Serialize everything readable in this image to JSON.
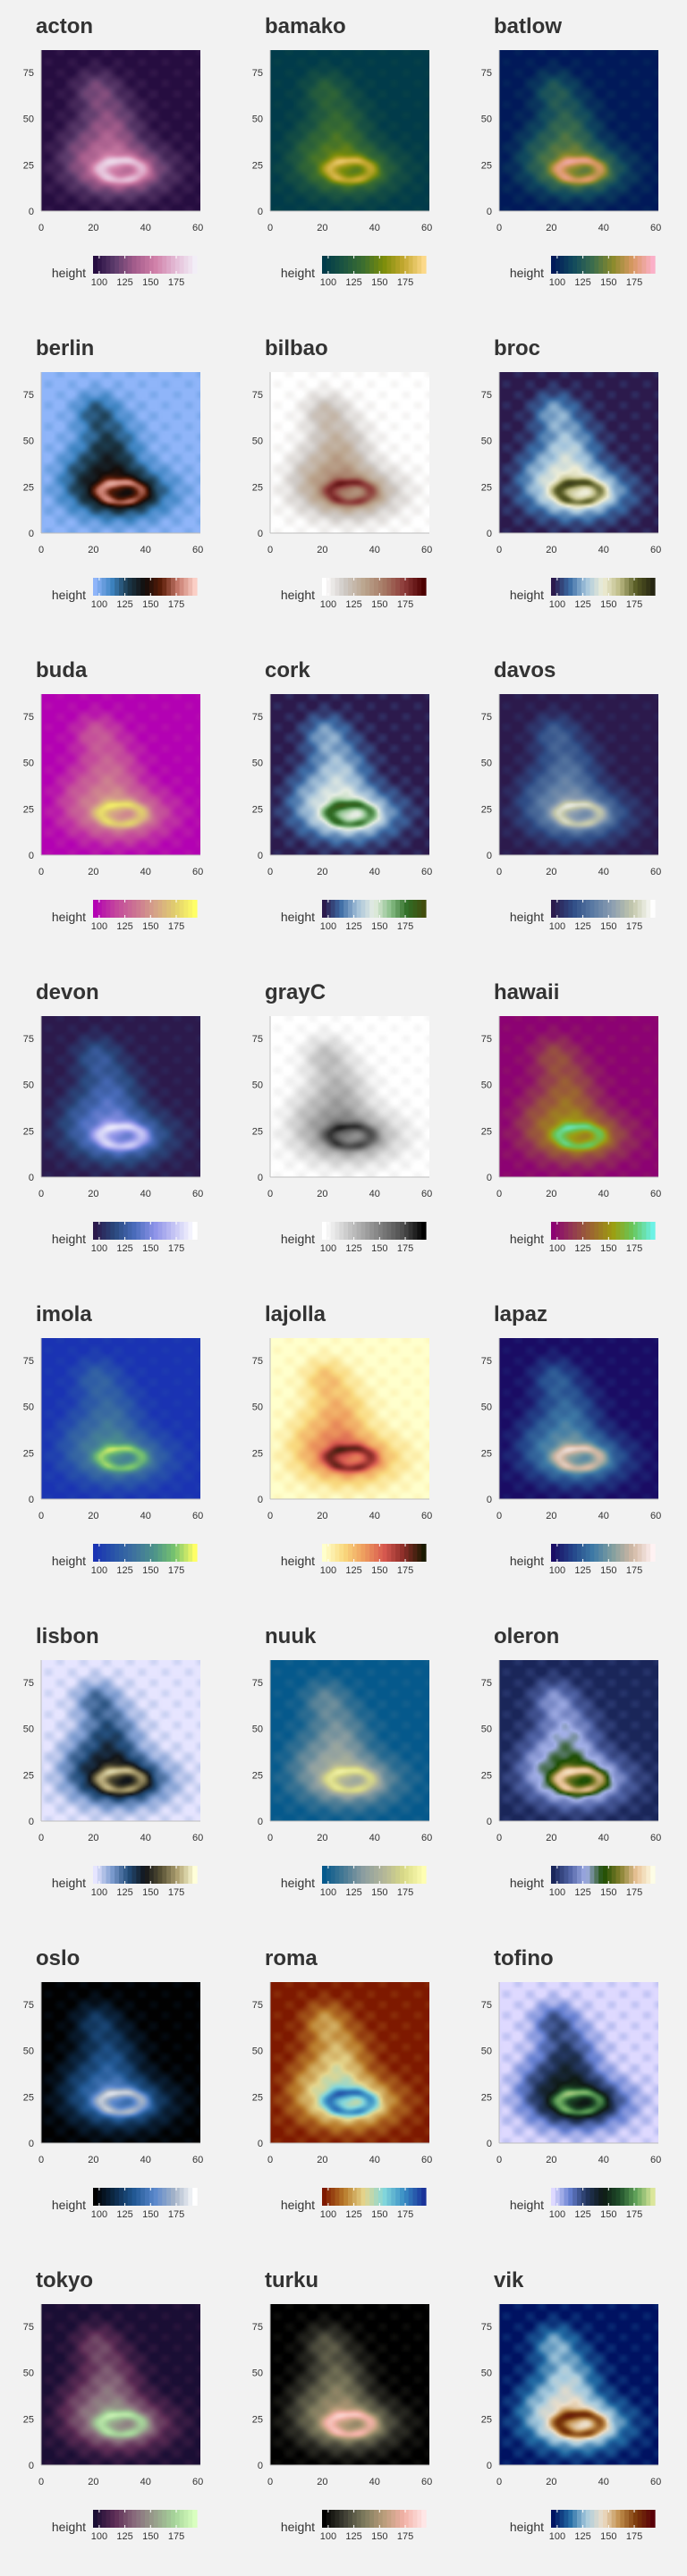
{
  "page": {
    "background": "#f2f2f2"
  },
  "chart_data": [
    {
      "type": "heatmap",
      "title": "acton",
      "colormap": [
        "#260d40",
        "#5e3d6d",
        "#a55d8c",
        "#d07fa8",
        "#e3b9d4",
        "#f2eef7"
      ],
      "xlabel": "",
      "ylabel": "",
      "xlim": [
        0,
        61
      ],
      "ylim": [
        0,
        87
      ],
      "x_ticks": [
        0,
        20,
        40,
        60
      ],
      "y_ticks": [
        0,
        25,
        50,
        75
      ],
      "legend": {
        "title": "height",
        "ticks": [
          100,
          125,
          150,
          175
        ],
        "range": [
          94,
          195
        ]
      }
    },
    {
      "type": "heatmap",
      "title": "bamako",
      "colormap": [
        "#013b4a",
        "#1d5541",
        "#3d6f2e",
        "#7c8d0a",
        "#c4a830",
        "#fcd98a"
      ],
      "xlabel": "",
      "ylabel": "",
      "xlim": [
        0,
        61
      ],
      "ylim": [
        0,
        87
      ],
      "x_ticks": [
        0,
        20,
        40,
        60
      ],
      "y_ticks": [
        0,
        25,
        50,
        75
      ],
      "legend": {
        "title": "height",
        "ticks": [
          100,
          125,
          150,
          175
        ],
        "range": [
          94,
          195
        ]
      }
    },
    {
      "type": "heatmap",
      "title": "batlow",
      "colormap": [
        "#011959",
        "#114a5e",
        "#3d6e4c",
        "#8a8a2b",
        "#d99863",
        "#fbb0c8"
      ],
      "xlabel": "",
      "ylabel": "",
      "xlim": [
        0,
        61
      ],
      "ylim": [
        0,
        87
      ],
      "x_ticks": [
        0,
        20,
        40,
        60
      ],
      "y_ticks": [
        0,
        25,
        50,
        75
      ],
      "legend": {
        "title": "height",
        "ticks": [
          100,
          125,
          150,
          175
        ],
        "range": [
          94,
          195
        ]
      }
    },
    {
      "type": "heatmap",
      "title": "berlin",
      "colormap": [
        "#8fb5f9",
        "#3e84c2",
        "#1b3849",
        "#120c0a",
        "#5d1d08",
        "#c77a6c",
        "#fbcfc6"
      ],
      "xlabel": "",
      "ylabel": "",
      "xlim": [
        0,
        61
      ],
      "ylim": [
        0,
        87
      ],
      "x_ticks": [
        0,
        20,
        40,
        60
      ],
      "y_ticks": [
        0,
        25,
        50,
        75
      ],
      "legend": {
        "title": "height",
        "ticks": [
          100,
          125,
          150,
          175
        ],
        "range": [
          94,
          195
        ]
      }
    },
    {
      "type": "heatmap",
      "title": "bilbao",
      "colormap": [
        "#ffffff",
        "#cfcac6",
        "#bba58e",
        "#a67a65",
        "#8e3c3a",
        "#4d0001"
      ],
      "xlabel": "",
      "ylabel": "",
      "xlim": [
        0,
        61
      ],
      "ylim": [
        0,
        87
      ],
      "x_ticks": [
        0,
        20,
        40,
        60
      ],
      "y_ticks": [
        0,
        25,
        50,
        75
      ],
      "legend": {
        "title": "height",
        "ticks": [
          100,
          125,
          150,
          175
        ],
        "range": [
          94,
          195
        ]
      }
    },
    {
      "type": "heatmap",
      "title": "broc",
      "colormap": [
        "#2c1a4c",
        "#3a6ca5",
        "#a6c6dd",
        "#efeed7",
        "#bebc86",
        "#575b24",
        "#262612"
      ],
      "xlabel": "",
      "ylabel": "",
      "xlim": [
        0,
        61
      ],
      "ylim": [
        0,
        87
      ],
      "x_ticks": [
        0,
        20,
        40,
        60
      ],
      "y_ticks": [
        0,
        25,
        50,
        75
      ],
      "legend": {
        "title": "height",
        "ticks": [
          100,
          125,
          150,
          175
        ],
        "range": [
          94,
          195
        ]
      }
    },
    {
      "type": "heatmap",
      "title": "buda",
      "colormap": [
        "#b301b3",
        "#c3459d",
        "#cb7393",
        "#d5a288",
        "#e0cd6e",
        "#ffff66"
      ],
      "xlabel": "",
      "ylabel": "",
      "xlim": [
        0,
        61
      ],
      "ylim": [
        0,
        87
      ],
      "x_ticks": [
        0,
        20,
        40,
        60
      ],
      "y_ticks": [
        0,
        25,
        50,
        75
      ],
      "legend": {
        "title": "height",
        "ticks": [
          100,
          125,
          150,
          175
        ],
        "range": [
          94,
          195
        ]
      }
    },
    {
      "type": "heatmap",
      "title": "cork",
      "colormap": [
        "#2c1a4c",
        "#3e6ca5",
        "#a3c0d8",
        "#e7eee4",
        "#8abf89",
        "#2f6d26",
        "#424d0d"
      ],
      "xlabel": "",
      "ylabel": "",
      "xlim": [
        0,
        61
      ],
      "ylim": [
        0,
        87
      ],
      "x_ticks": [
        0,
        20,
        40,
        60
      ],
      "y_ticks": [
        0,
        25,
        50,
        75
      ],
      "legend": {
        "title": "height",
        "ticks": [
          100,
          125,
          150,
          175
        ],
        "range": [
          94,
          195
        ]
      }
    },
    {
      "type": "heatmap",
      "title": "davos",
      "colormap": [
        "#2c1a4c",
        "#2f4d86",
        "#5b7ba4",
        "#8e9fb1",
        "#c4c8ab",
        "#fefefe"
      ],
      "xlabel": "",
      "ylabel": "",
      "xlim": [
        0,
        61
      ],
      "ylim": [
        0,
        87
      ],
      "x_ticks": [
        0,
        20,
        40,
        60
      ],
      "y_ticks": [
        0,
        25,
        50,
        75
      ],
      "legend": {
        "title": "height",
        "ticks": [
          100,
          125,
          150,
          175
        ],
        "range": [
          94,
          195
        ]
      }
    },
    {
      "type": "heatmap",
      "title": "devon",
      "colormap": [
        "#2c1a4c",
        "#2a4a7f",
        "#4a6dbd",
        "#8e93e8",
        "#c7c6f5",
        "#ffffff"
      ],
      "xlabel": "",
      "ylabel": "",
      "xlim": [
        0,
        61
      ],
      "ylim": [
        0,
        87
      ],
      "x_ticks": [
        0,
        20,
        40,
        60
      ],
      "y_ticks": [
        0,
        25,
        50,
        75
      ],
      "legend": {
        "title": "height",
        "ticks": [
          100,
          125,
          150,
          175
        ],
        "range": [
          94,
          195
        ]
      }
    },
    {
      "type": "heatmap",
      "title": "grayC",
      "colormap": [
        "#ffffff",
        "#d1d1d1",
        "#a4a4a4",
        "#777777",
        "#4b4b4b",
        "#000000"
      ],
      "xlabel": "",
      "ylabel": "",
      "xlim": [
        0,
        61
      ],
      "ylim": [
        0,
        87
      ],
      "x_ticks": [
        0,
        20,
        40,
        60
      ],
      "y_ticks": [
        0,
        25,
        50,
        75
      ],
      "legend": {
        "title": "height",
        "ticks": [
          100,
          125,
          150,
          175
        ],
        "range": [
          94,
          195
        ]
      }
    },
    {
      "type": "heatmap",
      "title": "hawaii",
      "colormap": [
        "#8c0273",
        "#933b50",
        "#9c6a2e",
        "#9d9d10",
        "#67c65a",
        "#6cf2e6"
      ],
      "xlabel": "",
      "ylabel": "",
      "xlim": [
        0,
        61
      ],
      "ylim": [
        0,
        87
      ],
      "x_ticks": [
        0,
        20,
        40,
        60
      ],
      "y_ticks": [
        0,
        25,
        50,
        75
      ],
      "legend": {
        "title": "height",
        "ticks": [
          100,
          125,
          150,
          175
        ],
        "range": [
          94,
          195
        ]
      }
    },
    {
      "type": "heatmap",
      "title": "imola",
      "colormap": [
        "#1a33b3",
        "#2a56a8",
        "#3f739e",
        "#4e9489",
        "#78c46e",
        "#ffff66"
      ],
      "xlabel": "",
      "ylabel": "",
      "xlim": [
        0,
        61
      ],
      "ylim": [
        0,
        87
      ],
      "x_ticks": [
        0,
        20,
        40,
        60
      ],
      "y_ticks": [
        0,
        25,
        50,
        75
      ],
      "legend": {
        "title": "height",
        "ticks": [
          100,
          125,
          150,
          175
        ],
        "range": [
          94,
          195
        ]
      }
    },
    {
      "type": "heatmap",
      "title": "lajolla",
      "colormap": [
        "#ffffcc",
        "#f9d87d",
        "#ee9c5e",
        "#d85a50",
        "#8a2c28",
        "#1a1a01"
      ],
      "xlabel": "",
      "ylabel": "",
      "xlim": [
        0,
        61
      ],
      "ylim": [
        0,
        87
      ],
      "x_ticks": [
        0,
        20,
        40,
        60
      ],
      "y_ticks": [
        0,
        25,
        50,
        75
      ],
      "legend": {
        "title": "height",
        "ticks": [
          100,
          125,
          150,
          175
        ],
        "range": [
          94,
          195
        ]
      }
    },
    {
      "type": "heatmap",
      "title": "lapaz",
      "colormap": [
        "#1a0c64",
        "#24478b",
        "#3e7aa6",
        "#839f9f",
        "#d2b8a4",
        "#fff2f3"
      ],
      "xlabel": "",
      "ylabel": "",
      "xlim": [
        0,
        61
      ],
      "ylim": [
        0,
        87
      ],
      "x_ticks": [
        0,
        20,
        40,
        60
      ],
      "y_ticks": [
        0,
        25,
        50,
        75
      ],
      "legend": {
        "title": "height",
        "ticks": [
          100,
          125,
          150,
          175
        ],
        "range": [
          94,
          195
        ]
      }
    },
    {
      "type": "heatmap",
      "title": "lisbon",
      "colormap": [
        "#e6e5ff",
        "#7d9cd0",
        "#234d7a",
        "#111418",
        "#5a5336",
        "#b2a474",
        "#ffffd9"
      ],
      "xlabel": "",
      "ylabel": "",
      "xlim": [
        0,
        61
      ],
      "ylim": [
        0,
        87
      ],
      "x_ticks": [
        0,
        20,
        40,
        60
      ],
      "y_ticks": [
        0,
        25,
        50,
        75
      ],
      "legend": {
        "title": "height",
        "ticks": [
          100,
          125,
          150,
          175
        ],
        "range": [
          94,
          195
        ]
      }
    },
    {
      "type": "heatmap",
      "title": "nuuk",
      "colormap": [
        "#05598c",
        "#487a95",
        "#8e9fa1",
        "#b3b698",
        "#d9da87",
        "#fefeb2"
      ],
      "xlabel": "",
      "ylabel": "",
      "xlim": [
        0,
        61
      ],
      "ylim": [
        0,
        87
      ],
      "x_ticks": [
        0,
        20,
        40,
        60
      ],
      "y_ticks": [
        0,
        25,
        50,
        75
      ],
      "legend": {
        "title": "height",
        "ticks": [
          100,
          125,
          150,
          175
        ],
        "range": [
          94,
          195
        ]
      }
    },
    {
      "type": "heatmap",
      "title": "oleron",
      "colormap": [
        "#1a2659",
        "#5063a5",
        "#a3b0e8",
        "#1a4c00",
        "#807d2b",
        "#e8c195",
        "#fdfde6"
      ],
      "xlabel": "",
      "ylabel": "",
      "xlim": [
        0,
        61
      ],
      "ylim": [
        0,
        87
      ],
      "x_ticks": [
        0,
        20,
        40,
        60
      ],
      "y_ticks": [
        0,
        25,
        50,
        75
      ],
      "legend": {
        "title": "height",
        "ticks": [
          100,
          125,
          150,
          175
        ],
        "range": [
          94,
          195
        ]
      }
    },
    {
      "type": "heatmap",
      "title": "oslo",
      "colormap": [
        "#010101",
        "#0d2b4a",
        "#235a96",
        "#5b88cc",
        "#a6b4c8",
        "#ffffff"
      ],
      "xlabel": "",
      "ylabel": "",
      "xlim": [
        0,
        61
      ],
      "ylim": [
        0,
        87
      ],
      "x_ticks": [
        0,
        20,
        40,
        60
      ],
      "y_ticks": [
        0,
        25,
        50,
        75
      ],
      "legend": {
        "title": "height",
        "ticks": [
          100,
          125,
          150,
          175
        ],
        "range": [
          94,
          195
        ]
      }
    },
    {
      "type": "heatmap",
      "title": "roma",
      "colormap": [
        "#7e1900",
        "#b87a2a",
        "#e6d68d",
        "#84d8dc",
        "#3a8fc5",
        "#1a3399"
      ],
      "xlabel": "",
      "ylabel": "",
      "xlim": [
        0,
        61
      ],
      "ylim": [
        0,
        87
      ],
      "x_ticks": [
        0,
        20,
        40,
        60
      ],
      "y_ticks": [
        0,
        25,
        50,
        75
      ],
      "legend": {
        "title": "height",
        "ticks": [
          100,
          125,
          150,
          175
        ],
        "range": [
          94,
          195
        ]
      }
    },
    {
      "type": "heatmap",
      "title": "tofino",
      "colormap": [
        "#ded9ff",
        "#6680d1",
        "#23365e",
        "#0e1914",
        "#1f4e2a",
        "#61a35a",
        "#dbe69b"
      ],
      "xlabel": "",
      "ylabel": "",
      "xlim": [
        0,
        61
      ],
      "ylim": [
        0,
        87
      ],
      "x_ticks": [
        0,
        20,
        40,
        60
      ],
      "y_ticks": [
        0,
        25,
        50,
        75
      ],
      "legend": {
        "title": "height",
        "ticks": [
          100,
          125,
          150,
          175
        ],
        "range": [
          94,
          195
        ]
      }
    },
    {
      "type": "heatmap",
      "title": "tokyo",
      "colormap": [
        "#1a0e34",
        "#5e2d56",
        "#8a6c7d",
        "#98a08c",
        "#a6d59a",
        "#d9ffbf"
      ],
      "xlabel": "",
      "ylabel": "",
      "xlim": [
        0,
        61
      ],
      "ylim": [
        0,
        87
      ],
      "x_ticks": [
        0,
        20,
        40,
        60
      ],
      "y_ticks": [
        0,
        25,
        50,
        75
      ],
      "legend": {
        "title": "height",
        "ticks": [
          100,
          125,
          150,
          175
        ],
        "range": [
          94,
          195
        ]
      }
    },
    {
      "type": "heatmap",
      "title": "turku",
      "colormap": [
        "#000000",
        "#3d3d33",
        "#7d7a5d",
        "#b99d7a",
        "#f2b1a6",
        "#ffe6e6"
      ],
      "xlabel": "",
      "ylabel": "",
      "xlim": [
        0,
        61
      ],
      "ylim": [
        0,
        87
      ],
      "x_ticks": [
        0,
        20,
        40,
        60
      ],
      "y_ticks": [
        0,
        25,
        50,
        75
      ],
      "legend": {
        "title": "height",
        "ticks": [
          100,
          125,
          150,
          175
        ],
        "range": [
          94,
          195
        ]
      }
    },
    {
      "type": "heatmap",
      "title": "vik",
      "colormap": [
        "#001261",
        "#226aa3",
        "#a8cbde",
        "#eedfc9",
        "#c08d4b",
        "#7c3a0b",
        "#590008"
      ],
      "xlabel": "",
      "ylabel": "",
      "xlim": [
        0,
        61
      ],
      "ylim": [
        0,
        87
      ],
      "x_ticks": [
        0,
        20,
        40,
        60
      ],
      "y_ticks": [
        0,
        25,
        50,
        75
      ],
      "legend": {
        "title": "height",
        "ticks": [
          100,
          125,
          150,
          175
        ],
        "range": [
          94,
          195
        ]
      }
    }
  ]
}
